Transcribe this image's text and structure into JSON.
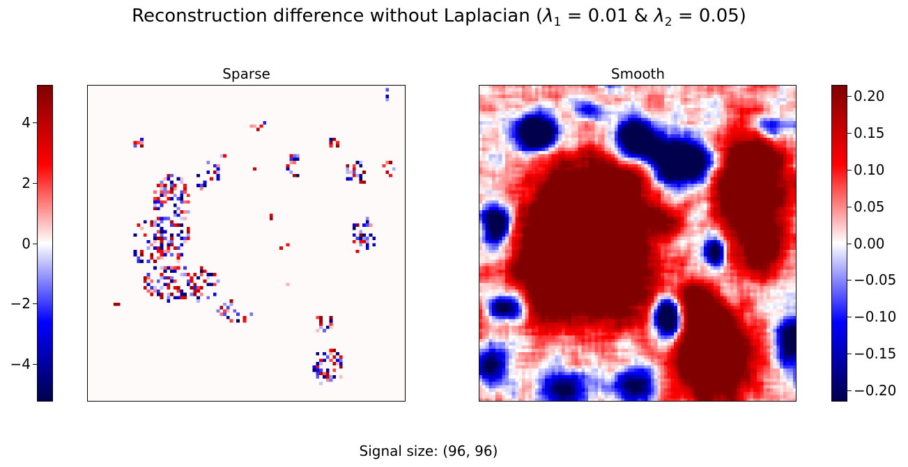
{
  "figure": {
    "title_main": "Reconstruction difference without Laplacian (",
    "title_lambda1": "λ",
    "title_sub1": "1",
    "title_eq1": " = 0.01 & ",
    "title_lambda2": "λ",
    "title_sub2": "2",
    "title_eq2": " = 0.05)",
    "footer": "Signal size: (96, 96)"
  },
  "colors": {
    "cmap": [
      "#00004c",
      "#0000ff",
      "#ffffff",
      "#ff0000",
      "#800000"
    ],
    "frame": "#000000"
  },
  "chart_data": [
    {
      "type": "heatmap",
      "title": "Sparse",
      "grid_size": [
        96,
        96
      ],
      "colormap": "seismic",
      "clim": [
        -5.25,
        5.25
      ],
      "colorbar": {
        "position": "left",
        "ticks": [
          4,
          2,
          0,
          -2,
          -4
        ],
        "tick_labels": [
          "4",
          "2",
          "0",
          "−2",
          "−4"
        ]
      },
      "axes_ticks": false
    },
    {
      "type": "heatmap",
      "title": "Smooth",
      "grid_size": [
        96,
        96
      ],
      "colormap": "seismic",
      "clim": [
        -0.215,
        0.215
      ],
      "colorbar": {
        "position": "right",
        "ticks": [
          0.2,
          0.15,
          0.1,
          0.05,
          0.0,
          -0.05,
          -0.1,
          -0.15,
          -0.2
        ],
        "tick_labels": [
          "0.20",
          "0.15",
          "0.10",
          "0.05",
          "0.00",
          "−0.05",
          "−0.10",
          "−0.15",
          "−0.20"
        ]
      },
      "axes_ticks": false
    }
  ]
}
